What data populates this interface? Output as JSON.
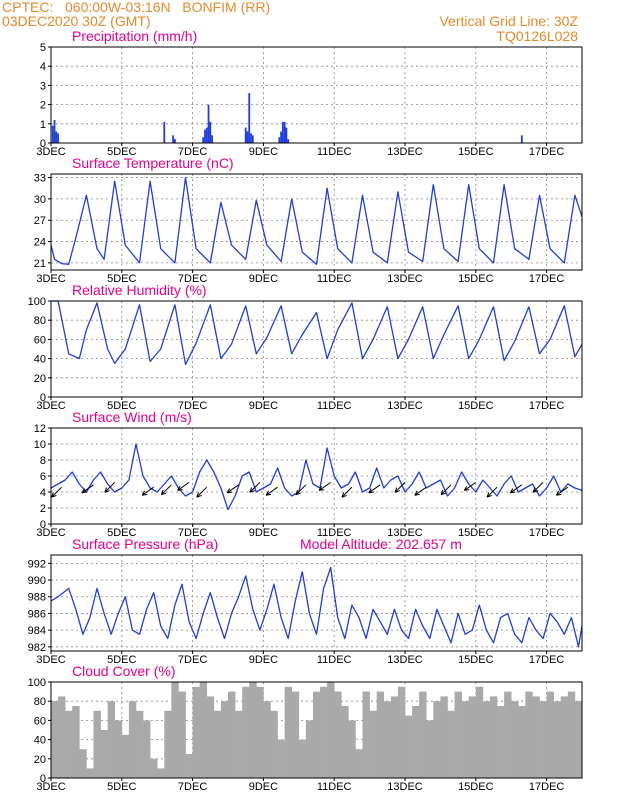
{
  "header": {
    "line1_left": "CPTEC:   060:00W-03:16N   BONFIM (RR)",
    "line2_left": "03DEC2020 30Z (GMT)",
    "line1_right": "Vertical Grid Line: 30Z",
    "line2_right": "TQ0126L028"
  },
  "colors": {
    "header": "#e8892a",
    "panel_title": "#e8008a",
    "series": "#1f3de0",
    "wind_arrow": "#000000",
    "cloud": "#a9a9a9"
  },
  "x_axis": {
    "start_day": 3,
    "end_day": 18,
    "tick_days": [
      3,
      5,
      7,
      9,
      11,
      13,
      15,
      17
    ],
    "tick_labels": [
      "3DEC",
      "5DEC",
      "7DEC",
      "9DEC",
      "11DEC",
      "13DEC",
      "15DEC",
      "17DEC"
    ]
  },
  "panels": [
    {
      "id": "precipitation",
      "title": "Precipitation  (mm/h)",
      "extra_label": "",
      "type": "bar",
      "ylim": [
        0,
        5
      ],
      "yticks": [
        0,
        1,
        2,
        3,
        4,
        5
      ]
    },
    {
      "id": "temperature",
      "title": "Surface Temperature (nC)",
      "extra_label": "",
      "type": "line",
      "ylim": [
        20,
        33.5
      ],
      "yticks": [
        21,
        24,
        27,
        30,
        33
      ]
    },
    {
      "id": "humidity",
      "title": "Relative Humidity  (%)",
      "extra_label": "",
      "type": "line",
      "ylim": [
        0,
        100
      ],
      "yticks": [
        0,
        20,
        40,
        60,
        80,
        100
      ]
    },
    {
      "id": "wind",
      "title": "Surface Wind  (m/s)",
      "extra_label": "",
      "type": "line",
      "ylim": [
        0,
        12
      ],
      "yticks": [
        0,
        2,
        4,
        6,
        8,
        10,
        12
      ]
    },
    {
      "id": "pressure",
      "title": "Surface Pressure (hPa)",
      "extra_label": "Model Altitude: 202.657  m",
      "type": "line",
      "ylim": [
        981.5,
        993
      ],
      "yticks": [
        982,
        984,
        986,
        988,
        990,
        992
      ]
    },
    {
      "id": "cloud",
      "title": "Cloud Cover  (%)",
      "extra_label": "",
      "type": "area",
      "ylim": [
        0,
        100
      ],
      "yticks": [
        0,
        20,
        40,
        60,
        80,
        100
      ]
    }
  ],
  "chart_data": [
    {
      "type": "bar",
      "title": "Precipitation  (mm/h)",
      "x_units": "day of December 2020",
      "ylim": [
        0,
        5
      ],
      "x": [
        3.05,
        3.1,
        3.15,
        3.2,
        6.2,
        6.45,
        6.5,
        7.3,
        7.35,
        7.4,
        7.45,
        7.5,
        7.55,
        8.5,
        8.55,
        8.6,
        8.65,
        8.7,
        9.45,
        9.5,
        9.55,
        9.6,
        9.65,
        9.7,
        16.3
      ],
      "values": [
        0.9,
        1.2,
        0.6,
        0.5,
        1.1,
        0.4,
        0.2,
        0.3,
        0.7,
        0.8,
        2.0,
        1.1,
        0.4,
        0.8,
        0.6,
        2.6,
        0.5,
        0.4,
        0.3,
        0.6,
        1.1,
        1.1,
        0.8,
        0.2,
        0.4
      ]
    },
    {
      "type": "line",
      "title": "Surface Temperature (nC)",
      "x_units": "day of December 2020",
      "ylim": [
        20,
        33.5
      ],
      "series": [
        {
          "x": [
            3.0,
            3.1,
            3.3,
            3.5,
            3.7,
            4.0,
            4.3,
            4.5,
            4.8,
            5.1,
            5.5,
            5.8,
            6.1,
            6.5,
            6.8,
            7.1,
            7.5,
            7.8,
            8.1,
            8.5,
            8.8,
            9.1,
            9.5,
            9.8,
            10.1,
            10.5,
            10.8,
            11.1,
            11.5,
            11.8,
            12.1,
            12.5,
            12.8,
            13.1,
            13.5,
            13.8,
            14.1,
            14.5,
            14.8,
            15.1,
            15.5,
            15.8,
            16.1,
            16.5,
            16.8,
            17.1,
            17.5,
            17.8,
            18.0
          ],
          "values": [
            23.5,
            21.5,
            20.9,
            20.8,
            24.5,
            30.5,
            23.0,
            21.5,
            32.5,
            23.5,
            21.0,
            32.5,
            23.0,
            21.0,
            33.0,
            23.0,
            21.0,
            29.5,
            23.5,
            21.5,
            29.8,
            23.5,
            21.2,
            30.0,
            22.5,
            20.8,
            31.5,
            23.0,
            21.0,
            30.5,
            22.5,
            21.0,
            31.0,
            22.5,
            21.2,
            32.0,
            23.0,
            21.2,
            32.0,
            23.0,
            21.0,
            32.0,
            23.0,
            21.5,
            30.5,
            23.0,
            21.0,
            30.5,
            27.5
          ]
        }
      ]
    },
    {
      "type": "line",
      "title": "Relative Humidity  (%)",
      "x_units": "day of December 2020",
      "ylim": [
        0,
        100
      ],
      "series": [
        {
          "x": [
            3.0,
            3.2,
            3.5,
            3.8,
            4.0,
            4.3,
            4.6,
            4.8,
            5.1,
            5.5,
            5.8,
            6.1,
            6.5,
            6.8,
            7.1,
            7.5,
            7.8,
            8.1,
            8.5,
            8.8,
            9.1,
            9.5,
            9.8,
            10.1,
            10.5,
            10.8,
            11.1,
            11.5,
            11.8,
            12.1,
            12.5,
            12.8,
            13.1,
            13.5,
            13.8,
            14.1,
            14.5,
            14.8,
            15.1,
            15.5,
            15.8,
            16.1,
            16.5,
            16.8,
            17.1,
            17.5,
            17.8,
            18.0
          ],
          "values": [
            100,
            100,
            45,
            40,
            70,
            98,
            50,
            35,
            50,
            96,
            37,
            50,
            96,
            34,
            56,
            96,
            40,
            55,
            95,
            45,
            62,
            95,
            45,
            65,
            88,
            40,
            70,
            98,
            40,
            60,
            94,
            40,
            60,
            94,
            40,
            65,
            95,
            40,
            60,
            94,
            38,
            58,
            94,
            45,
            60,
            95,
            42,
            55
          ]
        }
      ]
    },
    {
      "type": "line",
      "title": "Surface Wind  (m/s)",
      "x_units": "day of December 2020",
      "ylim": [
        0,
        12
      ],
      "arrows_x": [
        3.3,
        4.2,
        4.8,
        5.9,
        6.4,
        6.9,
        7.4,
        8.3,
        8.9,
        9.4,
        10.2,
        10.9,
        11.5,
        12.3,
        13.0,
        13.6,
        14.3,
        15.0,
        15.6,
        16.3,
        16.9,
        17.6
      ],
      "series": [
        {
          "x": [
            3.0,
            3.2,
            3.4,
            3.6,
            3.8,
            4.0,
            4.2,
            4.4,
            4.6,
            4.8,
            5.0,
            5.2,
            5.4,
            5.6,
            5.8,
            6.0,
            6.2,
            6.4,
            6.6,
            6.8,
            7.0,
            7.2,
            7.4,
            7.6,
            7.8,
            8.0,
            8.2,
            8.4,
            8.6,
            8.8,
            9.0,
            9.2,
            9.4,
            9.6,
            9.8,
            10.0,
            10.2,
            10.4,
            10.6,
            10.8,
            11.0,
            11.2,
            11.4,
            11.6,
            11.8,
            12.0,
            12.2,
            12.4,
            12.6,
            12.8,
            13.0,
            13.2,
            13.4,
            13.6,
            13.8,
            14.0,
            14.2,
            14.4,
            14.6,
            14.8,
            15.0,
            15.2,
            15.4,
            15.6,
            15.8,
            16.0,
            16.2,
            16.4,
            16.6,
            16.8,
            17.0,
            17.2,
            17.4,
            17.6,
            17.8,
            18.0
          ],
          "values": [
            4.5,
            5.0,
            5.5,
            6.5,
            5.0,
            4.0,
            5.5,
            6.5,
            5.0,
            4.0,
            4.5,
            5.5,
            10.0,
            6.0,
            4.5,
            4.0,
            5.0,
            6.0,
            4.5,
            3.5,
            4.0,
            6.5,
            8.0,
            6.5,
            4.5,
            1.8,
            3.5,
            6.0,
            6.5,
            4.0,
            4.5,
            5.0,
            7.0,
            4.5,
            3.5,
            4.0,
            8.0,
            5.0,
            4.5,
            9.5,
            6.0,
            4.5,
            5.0,
            6.5,
            4.0,
            4.5,
            7.0,
            4.5,
            5.5,
            6.0,
            4.0,
            5.0,
            6.5,
            4.5,
            5.0,
            5.5,
            3.5,
            4.5,
            6.5,
            5.0,
            4.0,
            5.5,
            4.5,
            3.5,
            5.0,
            6.0,
            4.0,
            4.5,
            5.0,
            3.5,
            4.5,
            6.0,
            4.0,
            5.0,
            4.5,
            4.2
          ]
        }
      ]
    },
    {
      "type": "line",
      "title": "Surface Pressure (hPa)",
      "x_units": "day of December 2020",
      "ylim": [
        981.5,
        993
      ],
      "series": [
        {
          "x": [
            3.0,
            3.2,
            3.5,
            3.7,
            3.9,
            4.1,
            4.3,
            4.5,
            4.7,
            4.9,
            5.1,
            5.3,
            5.5,
            5.7,
            5.9,
            6.1,
            6.3,
            6.5,
            6.7,
            6.9,
            7.1,
            7.3,
            7.5,
            7.7,
            7.9,
            8.1,
            8.3,
            8.5,
            8.7,
            8.9,
            9.1,
            9.3,
            9.5,
            9.7,
            9.9,
            10.1,
            10.3,
            10.5,
            10.7,
            10.9,
            11.1,
            11.3,
            11.5,
            11.7,
            11.9,
            12.1,
            12.3,
            12.5,
            12.7,
            12.9,
            13.1,
            13.3,
            13.5,
            13.7,
            13.9,
            14.1,
            14.3,
            14.5,
            14.7,
            14.9,
            15.1,
            15.3,
            15.5,
            15.7,
            15.9,
            16.1,
            16.3,
            16.5,
            16.7,
            16.9,
            17.1,
            17.3,
            17.5,
            17.7,
            17.9,
            18.0
          ],
          "values": [
            987.5,
            988.0,
            989.0,
            986.5,
            983.5,
            985.5,
            989.0,
            986.0,
            983.5,
            986.0,
            988.0,
            984.0,
            983.5,
            986.5,
            988.5,
            984.5,
            983.0,
            987.0,
            989.5,
            985.0,
            983.0,
            986.0,
            988.5,
            985.5,
            983.0,
            986.0,
            988.0,
            990.5,
            986.5,
            984.0,
            986.5,
            989.5,
            985.5,
            983.0,
            987.5,
            991.0,
            986.0,
            983.5,
            989.0,
            991.5,
            985.5,
            983.0,
            987.0,
            985.5,
            983.0,
            986.5,
            985.0,
            983.5,
            986.5,
            984.0,
            983.0,
            986.5,
            984.5,
            983.0,
            986.5,
            984.5,
            982.5,
            986.0,
            983.5,
            984.0,
            987.0,
            984.0,
            982.5,
            985.5,
            986.0,
            983.5,
            982.5,
            985.5,
            984.0,
            983.0,
            986.0,
            985.0,
            983.5,
            985.5,
            982.0,
            984.5
          ]
        }
      ]
    },
    {
      "type": "area",
      "title": "Cloud Cover  (%)",
      "x_units": "day of December 2020",
      "ylim": [
        0,
        100
      ],
      "series": [
        {
          "x": [
            3.0,
            3.2,
            3.4,
            3.6,
            3.8,
            4.0,
            4.2,
            4.4,
            4.6,
            4.8,
            5.0,
            5.2,
            5.4,
            5.6,
            5.8,
            6.0,
            6.2,
            6.4,
            6.6,
            6.8,
            7.0,
            7.2,
            7.4,
            7.6,
            7.8,
            8.0,
            8.2,
            8.4,
            8.6,
            8.8,
            9.0,
            9.2,
            9.4,
            9.6,
            9.8,
            10.0,
            10.2,
            10.4,
            10.6,
            10.8,
            11.0,
            11.2,
            11.4,
            11.6,
            11.8,
            12.0,
            12.2,
            12.4,
            12.6,
            12.8,
            13.0,
            13.2,
            13.4,
            13.6,
            13.8,
            14.0,
            14.2,
            14.4,
            14.6,
            14.8,
            15.0,
            15.2,
            15.4,
            15.6,
            15.8,
            16.0,
            16.2,
            16.4,
            16.6,
            16.8,
            17.0,
            17.2,
            17.4,
            17.6,
            17.8,
            18.0
          ],
          "values": [
            80,
            85,
            70,
            75,
            30,
            10,
            70,
            50,
            80,
            60,
            45,
            80,
            70,
            60,
            20,
            10,
            70,
            100,
            90,
            25,
            95,
            100,
            85,
            70,
            80,
            90,
            70,
            95,
            100,
            95,
            80,
            70,
            40,
            95,
            90,
            40,
            60,
            90,
            95,
            100,
            90,
            75,
            60,
            30,
            90,
            70,
            90,
            80,
            85,
            95,
            65,
            75,
            90,
            60,
            80,
            85,
            70,
            90,
            80,
            85,
            95,
            80,
            85,
            75,
            90,
            80,
            75,
            90,
            85,
            80,
            90,
            80,
            85,
            90,
            80,
            88
          ]
        }
      ]
    }
  ]
}
